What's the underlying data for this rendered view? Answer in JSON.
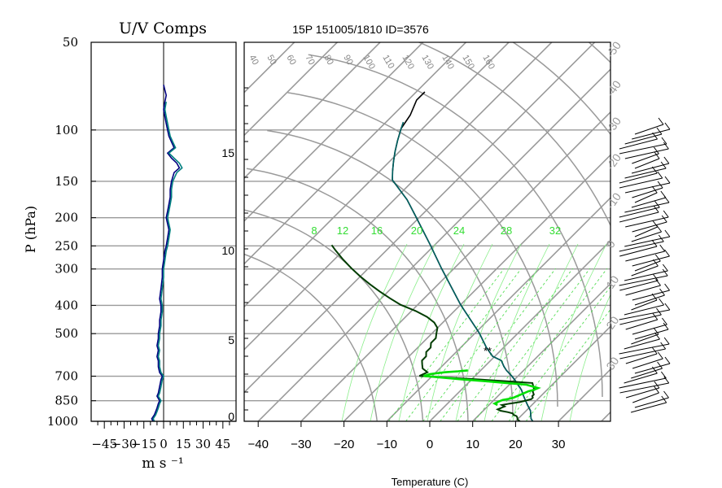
{
  "chart_data": [
    {
      "type": "line",
      "title": "U/V Comps",
      "xlabel": "m s ⁻¹",
      "ylabel": "P (hPa)",
      "y_log": true,
      "ylim": [
        1000,
        50
      ],
      "xlim": [
        -55,
        55
      ],
      "xticks": [
        "-45",
        "-30",
        "-15",
        "0",
        "15",
        "30",
        "45"
      ],
      "yticks": [
        "50",
        "100",
        "150",
        "200",
        "250",
        "300",
        "400",
        "500",
        "700",
        "850",
        "1000"
      ],
      "yticks_values": [
        50,
        100,
        150,
        200,
        250,
        300,
        400,
        500,
        700,
        850,
        1000
      ],
      "series": [
        {
          "name": "",
          "color": "#000080",
          "p": [
            1000,
            980,
            950,
            925,
            900,
            870,
            850,
            820,
            800,
            760,
            720,
            700,
            680,
            650,
            620,
            600,
            570,
            550,
            520,
            500,
            470,
            450,
            420,
            400,
            380,
            350,
            320,
            300,
            280,
            260,
            250,
            235,
            220,
            210,
            200,
            190,
            180,
            170,
            160,
            150,
            140,
            135,
            130,
            125,
            120,
            115,
            110,
            105,
            100,
            95,
            90,
            85,
            80,
            76,
            73,
            70
          ],
          "values": [
            -8,
            -9,
            -7,
            -6,
            -5,
            -4,
            -3,
            -5,
            -4,
            -3,
            -2,
            -1,
            -3,
            -4,
            -4,
            -5,
            -4,
            -5,
            -4,
            -4,
            -3,
            -3,
            -2,
            -2,
            -3,
            -2,
            -1,
            -1,
            0,
            1,
            2,
            3,
            4,
            3,
            2,
            3,
            4,
            5,
            5,
            6,
            8,
            12,
            10,
            6,
            3,
            8,
            6,
            4,
            3,
            2,
            1,
            0,
            1,
            2,
            1,
            0
          ]
        },
        {
          "name": "",
          "color": "#008080",
          "p": [
            1000,
            980,
            950,
            925,
            900,
            870,
            850,
            820,
            800,
            760,
            720,
            700,
            680,
            650,
            620,
            600,
            570,
            550,
            520,
            500,
            470,
            450,
            420,
            400,
            380,
            350,
            320,
            300,
            280,
            260,
            250,
            235,
            220,
            210,
            200,
            190,
            180,
            170,
            160,
            150,
            140,
            135,
            130,
            125,
            120,
            115,
            110,
            105,
            100,
            95,
            90,
            85,
            80
          ],
          "values": [
            -7,
            -8,
            -6,
            -5,
            -4,
            -3,
            -2,
            -4,
            -3,
            -2,
            -1,
            0,
            -2,
            -3,
            -3,
            -4,
            -3,
            -4,
            -3,
            -3,
            -2,
            -2,
            -1,
            -1,
            -2,
            -1,
            0,
            0,
            1,
            2,
            3,
            4,
            5,
            4,
            3,
            4,
            5,
            6,
            6,
            7,
            10,
            14,
            12,
            8,
            4,
            9,
            7,
            5,
            4,
            3,
            2,
            1,
            2
          ]
        }
      ]
    },
    {
      "type": "line",
      "title": "15P 151005/1810 ID=3576",
      "xlabel": "Temperature (C)",
      "xlim": [
        -45,
        40
      ],
      "ylim": [
        1000,
        100
      ],
      "y_log": true,
      "xticks": [
        "-40",
        "-30",
        "-20",
        "-10",
        "0",
        "10",
        "20",
        "30"
      ],
      "height_ticks": [
        "0",
        "5",
        "10",
        "15"
      ],
      "mixing_ratio_labels": [
        "8",
        "12",
        "16",
        "20",
        "24",
        "28",
        "32"
      ],
      "dry_adiabat_labels": [
        "40",
        "50",
        "60",
        "70",
        "80",
        "90",
        "100",
        "110",
        "120",
        "130",
        "140",
        "150",
        "160"
      ],
      "moist_adiabat_labels": [
        "-50",
        "-40",
        "-30",
        "-20",
        "-10",
        "0",
        "10",
        "20",
        "30"
      ],
      "series": [
        {
          "name": "",
          "color": "#000000",
          "p": [
            1000,
            980,
            950,
            920,
            900,
            880,
            870,
            850,
            820,
            780,
            750,
            720,
            700,
            670,
            650,
            620,
            600,
            560,
            500,
            400,
            300,
            250,
            200,
            175,
            150,
            140,
            130,
            120,
            110,
            100,
            90,
            80,
            75
          ],
          "values": [
            24,
            23,
            22,
            21,
            20,
            19,
            18.5,
            17.5,
            16,
            14,
            12,
            10,
            8.5,
            6,
            4.5,
            2.5,
            -0.5,
            -4,
            -9,
            -20,
            -33,
            -41,
            -51,
            -57,
            -65,
            -67,
            -69,
            -71,
            -73,
            -75,
            -76,
            -78,
            -78
          ]
        },
        {
          "name": "",
          "color": "#006060",
          "p": [
            1000,
            980,
            950,
            920,
            900,
            880,
            850,
            820,
            780,
            750,
            720,
            700,
            670,
            650,
            620,
            600,
            560,
            500,
            400,
            300,
            250,
            200,
            175,
            150,
            140,
            130,
            120,
            110,
            100,
            95
          ],
          "values": [
            24,
            23,
            22,
            21,
            20,
            19,
            17.5,
            16,
            14,
            12,
            10,
            8.5,
            6,
            4.5,
            2.5,
            -0.5,
            -4,
            -9,
            -20,
            -33,
            -41,
            -51,
            -57,
            -65,
            -67,
            -69,
            -71,
            -73,
            -75,
            -76
          ]
        },
        {
          "name": "",
          "color": "#003c00",
          "p": [
            1000,
            985,
            970,
            960,
            950,
            940,
            930,
            920,
            910,
            900,
            890,
            880,
            870,
            860,
            850,
            840,
            830,
            820,
            810,
            800,
            790,
            780,
            770,
            760,
            740,
            720,
            700,
            680,
            660,
            640,
            620,
            600,
            580,
            560,
            540,
            520,
            500,
            480,
            460,
            440,
            420,
            400,
            380,
            360,
            340,
            320,
            300,
            280,
            260,
            250
          ],
          "values": [
            21,
            20,
            19.5,
            19,
            18,
            17.5,
            16,
            14,
            13,
            13.5,
            14,
            13,
            14.5,
            16.5,
            17.5,
            18.5,
            18.5,
            18,
            18,
            17.5,
            17,
            17,
            16.5,
            16,
            15,
            2,
            -13,
            -12,
            -14,
            -15,
            -16,
            -16,
            -17,
            -17,
            -18,
            -18,
            -19,
            -20,
            -22,
            -25,
            -29,
            -34,
            -38,
            -42,
            -46,
            -50,
            -54,
            -58,
            -62,
            -64
          ]
        },
        {
          "name": "",
          "color": "#00e000",
          "p": [
            880,
            870,
            855,
            845,
            840,
            830,
            820,
            810,
            800,
            790,
            780,
            770,
            750,
            740,
            730,
            720,
            700,
            690,
            680,
            675,
            670
          ],
          "values": [
            12,
            11,
            11.5,
            12,
            13,
            14,
            14.5,
            15,
            15.5,
            16,
            17,
            17.5,
            14,
            9,
            4,
            -2,
            -12,
            -11,
            -8,
            -5,
            -3
          ]
        }
      ],
      "markers": [
        "**"
      ]
    }
  ]
}
